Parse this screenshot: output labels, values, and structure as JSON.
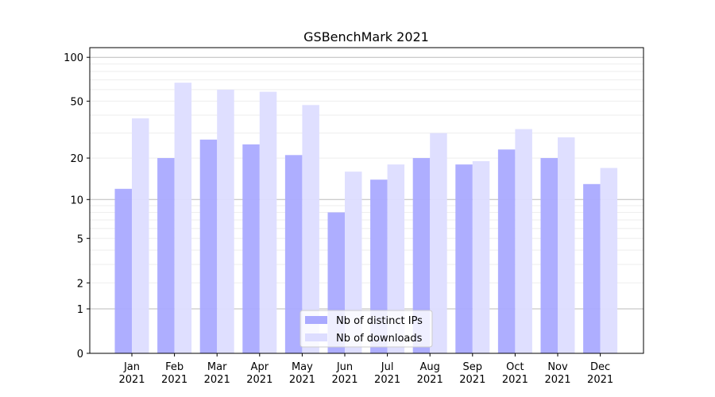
{
  "chart_data": {
    "type": "bar",
    "title": "GSBenchMark 2021",
    "xlabel": "",
    "ylabel": "",
    "yscale": "symlog",
    "ylim": [
      0,
      116
    ],
    "yticks": [
      0,
      1,
      2,
      5,
      10,
      20,
      50,
      100
    ],
    "categories": [
      "Jan\n2021",
      "Feb\n2021",
      "Mar\n2021",
      "Apr\n2021",
      "May\n2021",
      "Jun\n2021",
      "Jul\n2021",
      "Aug\n2021",
      "Sep\n2021",
      "Oct\n2021",
      "Nov\n2021",
      "Dec\n2021"
    ],
    "series": [
      {
        "name": "Nb of distinct IPs",
        "color": "#aaaaff",
        "values": [
          12,
          20,
          27,
          25,
          21,
          8,
          14,
          20,
          18,
          23,
          20,
          13
        ]
      },
      {
        "name": "Nb of downloads",
        "color": "#ddddff",
        "values": [
          38,
          67,
          60,
          58,
          47,
          16,
          18,
          30,
          19,
          32,
          28,
          17
        ]
      }
    ],
    "legend": "bottom-center",
    "grid": true
  }
}
